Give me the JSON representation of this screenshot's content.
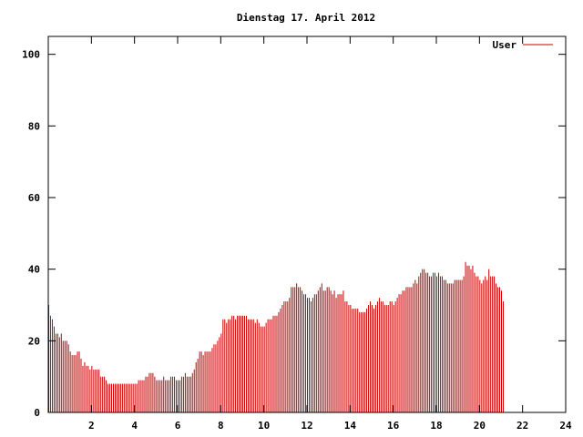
{
  "chart_data": {
    "type": "bar",
    "title": "Dienstag 17. April 2012",
    "xlabel": "",
    "ylabel": "",
    "xlim": [
      0,
      24
    ],
    "ylim": [
      0,
      105
    ],
    "x_ticks": [
      2,
      4,
      6,
      8,
      10,
      12,
      14,
      16,
      18,
      20,
      22,
      24
    ],
    "y_ticks": [
      0,
      20,
      40,
      60,
      80,
      100
    ],
    "legend_position": "top-right",
    "grid": false,
    "series": [
      {
        "name": "User",
        "color": "#cc0000",
        "x_step_minutes": 5,
        "values": [
          30,
          27,
          26,
          24,
          22,
          22,
          21,
          22,
          20,
          20,
          20,
          19,
          17,
          16,
          16,
          16,
          17,
          17,
          15,
          13,
          14,
          13,
          13,
          12,
          13,
          12,
          12,
          12,
          12,
          10,
          10,
          10,
          9,
          8,
          8,
          8,
          8,
          8,
          8,
          8,
          8,
          8,
          8,
          8,
          8,
          8,
          8,
          8,
          8,
          8,
          9,
          9,
          9,
          9,
          10,
          10,
          11,
          11,
          11,
          10,
          9,
          9,
          9,
          9,
          10,
          9,
          9,
          9,
          10,
          10,
          10,
          9,
          9,
          9,
          10,
          10,
          11,
          10,
          10,
          10,
          11,
          12,
          14,
          15,
          17,
          17,
          16,
          17,
          17,
          17,
          17,
          18,
          19,
          19,
          20,
          21,
          22,
          26,
          26,
          25,
          26,
          26,
          27,
          27,
          26,
          27,
          27,
          27,
          27,
          27,
          27,
          26,
          26,
          26,
          26,
          25,
          26,
          25,
          24,
          24,
          24,
          25,
          26,
          26,
          26,
          27,
          27,
          27,
          28,
          29,
          30,
          31,
          31,
          31,
          32,
          35,
          35,
          35,
          36,
          35,
          35,
          34,
          33,
          33,
          32,
          32,
          31,
          32,
          33,
          33,
          34,
          35,
          36,
          34,
          34,
          35,
          35,
          34,
          33,
          34,
          32,
          33,
          33,
          33,
          34,
          31,
          31,
          30,
          30,
          29,
          29,
          29,
          29,
          28,
          28,
          28,
          28,
          29,
          30,
          31,
          30,
          29,
          30,
          31,
          32,
          31,
          31,
          30,
          30,
          30,
          31,
          31,
          30,
          31,
          32,
          33,
          33,
          34,
          34,
          35,
          35,
          35,
          35,
          36,
          37,
          36,
          38,
          39,
          40,
          40,
          39,
          39,
          38,
          38,
          39,
          39,
          38,
          39,
          38,
          38,
          37,
          37,
          36,
          36,
          36,
          36,
          37,
          37,
          37,
          37,
          37,
          38,
          42,
          41,
          41,
          40,
          41,
          39,
          38,
          38,
          37,
          36,
          37,
          38,
          37,
          40,
          38,
          38,
          38,
          36,
          35,
          35,
          34,
          31
        ]
      }
    ]
  }
}
